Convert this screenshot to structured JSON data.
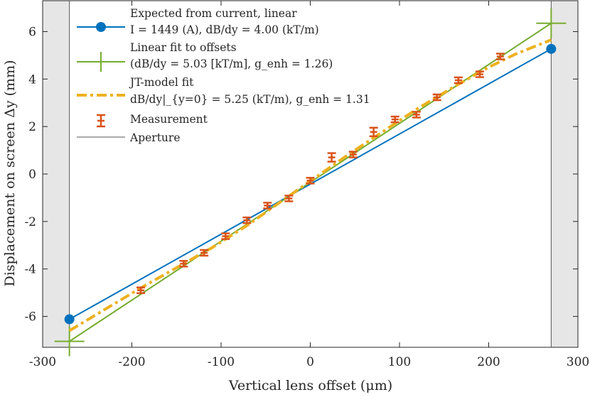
{
  "chart_data": {
    "type": "line",
    "title": "",
    "xlabel": "Vertical lens offset (μm)",
    "ylabel": "Displacement on screen Δy (mm)",
    "xlim": [
      -300,
      300
    ],
    "ylim": [
      -7.3,
      7.3
    ],
    "xticks": [
      -300,
      -200,
      -100,
      0,
      100,
      200,
      300
    ],
    "yticks": [
      -6,
      -4,
      -2,
      0,
      2,
      4,
      6
    ],
    "xtick_labels": [
      "-300",
      "-200",
      "-100",
      "0",
      "100",
      "200",
      "300"
    ],
    "ytick_labels": [
      "-6",
      "-4",
      "-2",
      "0",
      "2",
      "4",
      "6"
    ],
    "aperture": [
      -270,
      270
    ],
    "legend_position": "top-left",
    "colors": {
      "expected": "#0072BD",
      "linear_fit": "#77AC30",
      "jt_fit": "#EDB120",
      "measurement": "#D95319",
      "aperture": "#555555",
      "aperture_fill": "#e6e6e6"
    },
    "series": [
      {
        "name": "Expected from current, linear",
        "style": "line-with-end-markers",
        "x": [
          -270,
          270
        ],
        "y": [
          -6.12,
          5.27
        ]
      },
      {
        "name": "Linear fit to offsets",
        "style": "line-with-end-plus",
        "x": [
          -270,
          270
        ],
        "y": [
          -7.05,
          6.35
        ]
      },
      {
        "name": "JT-model fit",
        "style": "dash-dot",
        "x": [
          -270,
          -230,
          -190,
          -150,
          -110,
          -70,
          -40,
          0,
          40,
          80,
          120,
          160,
          200,
          230,
          270
        ],
        "y": [
          -6.6,
          -5.7,
          -4.8,
          -3.95,
          -3.1,
          -2.15,
          -1.35,
          -0.3,
          0.75,
          1.75,
          2.75,
          3.65,
          4.5,
          5.05,
          5.65
        ]
      },
      {
        "name": "Measurement",
        "style": "errorbar",
        "x": [
          -190,
          -142,
          -119,
          -95,
          -71,
          -48,
          -24,
          0,
          24,
          48,
          71,
          95,
          119,
          142,
          166,
          190,
          213
        ],
        "y": [
          -4.9,
          -3.78,
          -3.32,
          -2.62,
          -1.95,
          -1.33,
          -1.03,
          -0.28,
          0.7,
          0.82,
          1.77,
          2.3,
          2.5,
          3.23,
          3.95,
          4.2,
          4.95
        ],
        "err": [
          0.12,
          0.12,
          0.12,
          0.12,
          0.12,
          0.12,
          0.12,
          0.12,
          0.18,
          0.12,
          0.18,
          0.12,
          0.12,
          0.12,
          0.12,
          0.12,
          0.12
        ]
      },
      {
        "name": "Aperture",
        "style": "vertical-lines",
        "x": [
          -270,
          270
        ]
      }
    ],
    "legend": [
      {
        "key": "expected",
        "line1": "Expected from current, linear",
        "line2": "I = 1449 (A), dB/dy = 4.00 (kT/m)"
      },
      {
        "key": "linear_fit",
        "line1": "Linear fit to offsets",
        "line2": "(dB/dy = 5.03 [kT/m], g_enh = 1.26)"
      },
      {
        "key": "jt_fit",
        "line1": "JT-model fit",
        "line2": "dB/dy|_{y=0} = 5.25 (kT/m), g_enh = 1.31"
      },
      {
        "key": "measurement",
        "line1": "Measurement"
      },
      {
        "key": "aperture",
        "line1": "Aperture"
      }
    ]
  }
}
